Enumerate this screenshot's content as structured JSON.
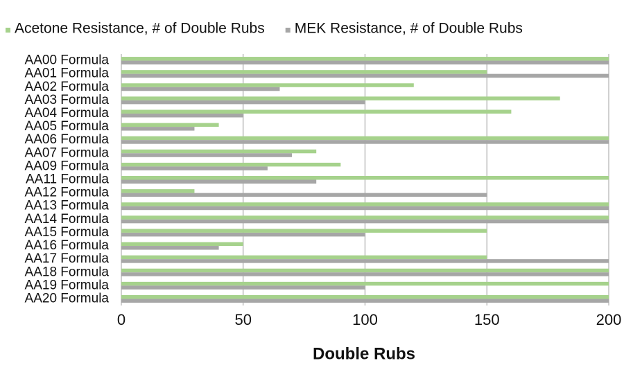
{
  "chart_data": {
    "type": "hbar",
    "categories": [
      "AA00 Formula",
      "AA01 Formula",
      "AA02 Formula",
      "AA03 Formula",
      "AA04 Formula",
      "AA05 Formula",
      "AA06 Formula",
      "AA07 Formula",
      "AA09 Formula",
      "AA11 Formula",
      "AA12 Formula",
      "AA13 Formula",
      "AA14 Formula",
      "AA15 Formula",
      "AA16 Formula",
      "AA17 Formula",
      "AA18 Formula",
      "AA19 Formula",
      "AA20 Formula"
    ],
    "series": [
      {
        "name": "Acetone Resistance, # of Double Rubs",
        "color": "#a6d28c",
        "values": [
          200,
          150,
          120,
          180,
          160,
          40,
          200,
          80,
          90,
          200,
          30,
          200,
          200,
          150,
          50,
          150,
          200,
          200,
          200
        ]
      },
      {
        "name": "MEK Resistance, # of Double Rubs",
        "color": "#a6a6a6",
        "values": [
          200,
          200,
          65,
          100,
          50,
          30,
          200,
          70,
          60,
          80,
          150,
          200,
          200,
          100,
          40,
          200,
          200,
          100,
          200
        ]
      }
    ],
    "x_label": "Double Rubs",
    "xlim": [
      0,
      200
    ],
    "xticks": [
      0,
      50,
      100,
      150,
      200
    ],
    "grid": true,
    "legend": "top"
  }
}
